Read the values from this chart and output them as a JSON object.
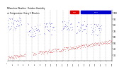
{
  "title": "Milwaukee Weather  Outdoor Humidity\nvs Temperature\nEvery 5 Minutes",
  "background_color": "#ffffff",
  "grid_color": "#aaaaaa",
  "humidity_color": "#0000ee",
  "temp_color": "#dd0000",
  "legend_red_label": "Humidity",
  "legend_blue_label": "Temp",
  "legend_red_color": "#dd0000",
  "legend_blue_color": "#0000cc",
  "ylim": [
    20,
    105
  ],
  "xlim": [
    0,
    288
  ],
  "y_ticks": [
    30,
    40,
    50,
    60,
    70,
    80,
    90,
    100
  ],
  "n_points": 288
}
